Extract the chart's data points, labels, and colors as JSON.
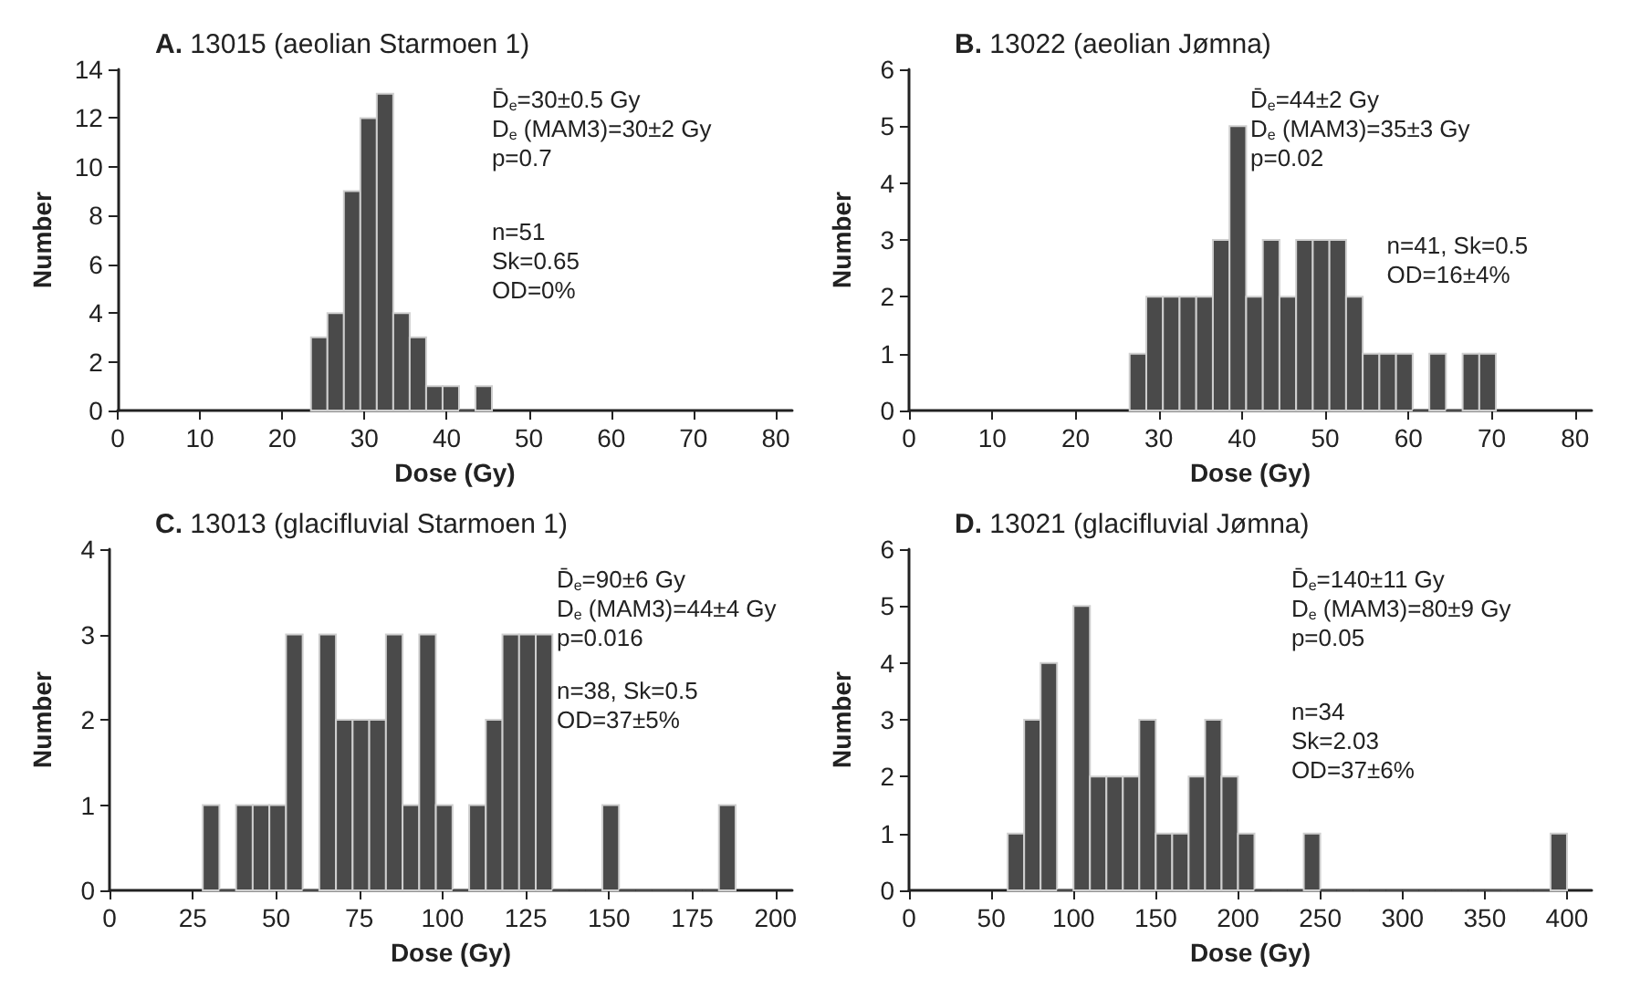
{
  "chart_data": [
    {
      "type": "histogram",
      "title": "A. 13015 (aeolian Starmoen 1)",
      "xlabel": "Dose (Gy)",
      "ylabel": "Number",
      "color": "#4a4a4a",
      "bins": [
        23.5,
        25.5,
        27.5,
        29.5,
        31.5,
        33.5,
        35.5,
        37.5,
        39.5,
        41.5,
        43.5,
        45.5
      ],
      "values": [
        3,
        4,
        9,
        12,
        13,
        4,
        3,
        1,
        1,
        0,
        1
      ],
      "xlim": [
        0,
        82
      ],
      "xticks": [
        0,
        10,
        20,
        30,
        40,
        50,
        60,
        70,
        80
      ],
      "ylim": [
        0,
        14
      ],
      "yticks": [
        0,
        2,
        4,
        6,
        8,
        10,
        12,
        14
      ],
      "grid": false,
      "annotations": [
        "D̄$_{e}$=30±0.5 Gy",
        "D$_{e}$ (MAM3)=30±2 Gy",
        "p=0.7",
        "n=51",
        "Sk=0.65",
        "OD=0%"
      ]
    },
    {
      "type": "histogram",
      "title": "B. 13022 (aeolian Jømna)",
      "xlabel": "Dose (Gy)",
      "ylabel": "Number",
      "color": "#4a4a4a",
      "bins": [
        26.5,
        28.5,
        30.5,
        32.5,
        34.5,
        36.5,
        38.5,
        40.5,
        42.5,
        44.5,
        46.5,
        48.5,
        50.5,
        52.5,
        54.5,
        56.5,
        58.5,
        60.5,
        62.5,
        64.5,
        66.5,
        68.5,
        70.5
      ],
      "values": [
        1,
        2,
        2,
        2,
        2,
        3,
        5,
        2,
        3,
        2,
        3,
        3,
        3,
        2,
        1,
        1,
        1,
        0,
        1,
        0,
        1,
        1
      ],
      "xlim": [
        0,
        82
      ],
      "xticks": [
        0,
        10,
        20,
        30,
        40,
        50,
        60,
        70,
        80
      ],
      "ylim": [
        0,
        6
      ],
      "yticks": [
        0,
        1,
        2,
        3,
        4,
        5,
        6
      ],
      "grid": false,
      "annotations": [
        "D̄$_{e}$=44±2 Gy",
        "D$_{e}$ (MAM3)=35±3 Gy",
        "p=0.02",
        "n=41, Sk=0.5",
        "OD=16±4%"
      ]
    },
    {
      "type": "histogram",
      "title": "C. 13013 (glacifluvial Starmoen 1)",
      "xlabel": "Dose (Gy)",
      "ylabel": "Number",
      "color": "#4a4a4a",
      "bins": [
        28,
        33,
        38,
        43,
        48,
        53,
        58,
        63,
        68,
        73,
        78,
        83,
        88,
        93,
        98,
        103,
        108,
        113,
        118,
        123,
        128,
        133,
        138,
        143,
        148,
        153,
        158,
        163,
        168,
        173,
        178,
        183,
        188
      ],
      "values": [
        1,
        0,
        1,
        1,
        1,
        3,
        0,
        3,
        2,
        2,
        2,
        3,
        1,
        3,
        1,
        0,
        1,
        2,
        3,
        3,
        3,
        0,
        0,
        0,
        1,
        0,
        0,
        0,
        0,
        0,
        0,
        1
      ],
      "xlim": [
        0,
        205
      ],
      "xticks": [
        0,
        25,
        50,
        75,
        100,
        125,
        150,
        175,
        200
      ],
      "ylim": [
        0,
        4
      ],
      "yticks": [
        0,
        1,
        2,
        3,
        4
      ],
      "grid": false,
      "annotations": [
        "D̄$_{e}$=90±6 Gy",
        "D$_{e}$ (MAM3)=44±4 Gy",
        "p=0.016",
        "n=38, Sk=0.5",
        "OD=37±5%"
      ]
    },
    {
      "type": "histogram",
      "title": "D. 13021 (glacifluvial Jømna)",
      "xlabel": "Dose (Gy)",
      "ylabel": "Number",
      "color": "#4a4a4a",
      "bins": [
        60,
        70,
        80,
        90,
        100,
        110,
        120,
        130,
        140,
        150,
        160,
        170,
        180,
        190,
        200,
        210,
        220,
        230,
        240,
        250,
        260,
        270,
        280,
        290,
        300,
        310,
        320,
        330,
        340,
        350,
        360,
        370,
        380,
        390,
        400
      ],
      "values": [
        1,
        3,
        4,
        0,
        5,
        2,
        2,
        2,
        3,
        1,
        1,
        2,
        3,
        2,
        1,
        0,
        0,
        0,
        1,
        0,
        0,
        0,
        0,
        0,
        0,
        0,
        0,
        0,
        0,
        0,
        0,
        0,
        0,
        1
      ],
      "xlim": [
        0,
        415
      ],
      "xticks": [
        0,
        50,
        100,
        150,
        200,
        250,
        300,
        350,
        400
      ],
      "ylim": [
        0,
        6
      ],
      "yticks": [
        0,
        1,
        2,
        3,
        4,
        5,
        6
      ],
      "grid": false,
      "annotations": [
        "D̄$_{e}$=140±11 Gy",
        "D$_{e}$ (MAM3)=80±9 Gy",
        "p=0.05",
        "n=34",
        "Sk=2.03",
        "OD=37±6%"
      ]
    }
  ]
}
